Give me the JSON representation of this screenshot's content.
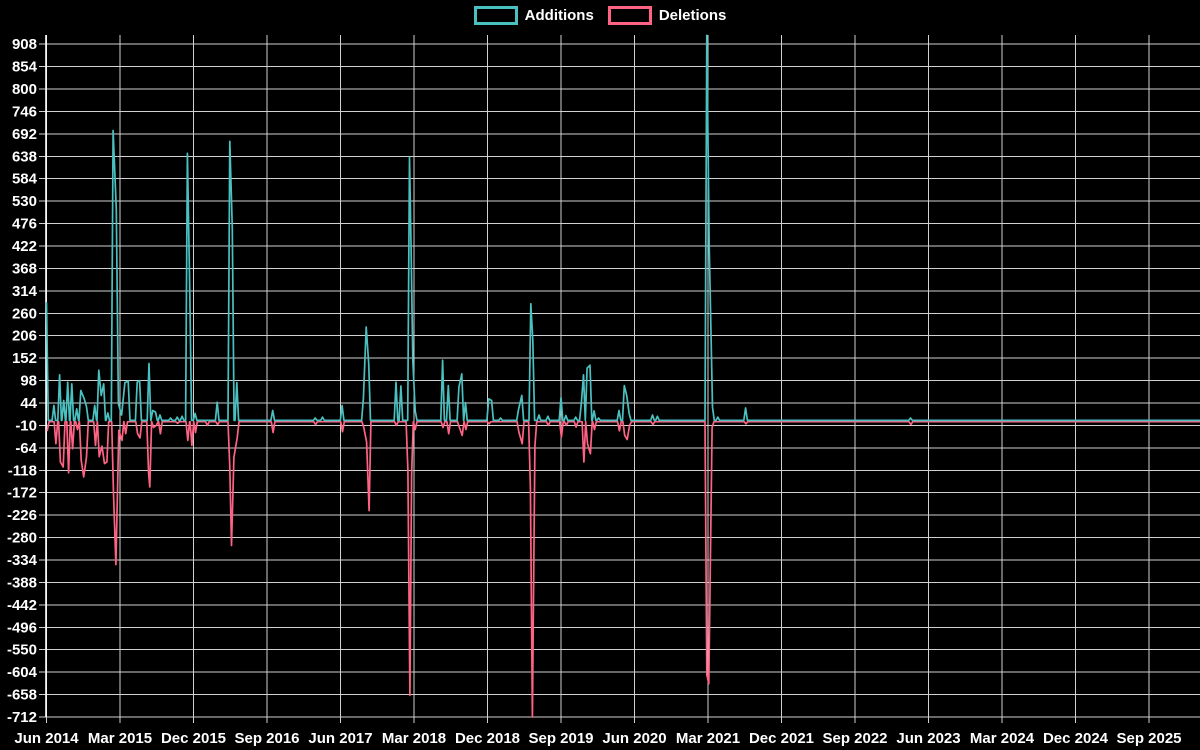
{
  "legend": {
    "additions_label": "Additions",
    "deletions_label": "Deletions"
  },
  "colors": {
    "additions": "#4bc0c0",
    "deletions": "#ff6384",
    "background": "#000000",
    "grid": "#ffffff",
    "text": "#ffffff"
  },
  "chart_data": {
    "type": "line",
    "title": "",
    "legend_position": "top-center",
    "grid": true,
    "x_axis_note": "series x values are months since Jun 2014 (0 = Jun 2014); one gridline every 9 months",
    "x_ticks": [
      "Jun 2014",
      "Mar 2015",
      "Dec 2015",
      "Sep 2016",
      "Jun 2017",
      "Mar 2018",
      "Dec 2018",
      "Sep 2019",
      "Jun 2020",
      "Mar 2021",
      "Dec 2021",
      "Sep 2022",
      "Jun 2023",
      "Mar 2024",
      "Dec 2024",
      "Sep 2025"
    ],
    "y_ticks": [
      908,
      854,
      800,
      746,
      692,
      638,
      584,
      530,
      476,
      422,
      368,
      314,
      260,
      206,
      152,
      98,
      44,
      -10,
      -64,
      -118,
      -172,
      -226,
      -280,
      -334,
      -388,
      -442,
      -496,
      -550,
      -604,
      -658,
      -712
    ],
    "y_range": [
      -712,
      930
    ],
    "x_range_months": [
      0,
      141.3
    ],
    "baseline": {
      "additions": 2,
      "deletions": -1
    },
    "series": [
      {
        "name": "Additions",
        "color": "#4bc0c0",
        "points": [
          [
            0.0,
            285
          ],
          [
            0.9,
            38
          ],
          [
            1.6,
            112
          ],
          [
            2.1,
            50
          ],
          [
            2.6,
            94
          ],
          [
            3.1,
            90
          ],
          [
            3.7,
            30
          ],
          [
            4.2,
            74
          ],
          [
            4.6,
            55
          ],
          [
            4.9,
            35
          ],
          [
            5.9,
            38
          ],
          [
            6.4,
            123
          ],
          [
            6.7,
            62
          ],
          [
            7.0,
            90
          ],
          [
            7.5,
            20
          ],
          [
            8.15,
            700
          ],
          [
            8.55,
            510
          ],
          [
            8.8,
            42
          ],
          [
            9.2,
            15
          ],
          [
            9.6,
            93
          ],
          [
            10.0,
            97
          ],
          [
            11.1,
            94
          ],
          [
            11.4,
            98
          ],
          [
            12.55,
            139
          ],
          [
            13.0,
            26
          ],
          [
            13.35,
            22
          ],
          [
            13.9,
            15
          ],
          [
            15.2,
            8
          ],
          [
            16.0,
            10
          ],
          [
            16.6,
            12
          ],
          [
            17.25,
            645
          ],
          [
            17.55,
            308
          ],
          [
            18.2,
            19
          ],
          [
            20.9,
            46
          ],
          [
            22.45,
            674
          ],
          [
            22.75,
            464
          ],
          [
            23.3,
            93
          ],
          [
            27.7,
            26
          ],
          [
            32.9,
            8
          ],
          [
            33.8,
            10
          ],
          [
            36.2,
            38
          ],
          [
            38.8,
            55
          ],
          [
            39.15,
            227
          ],
          [
            39.45,
            139
          ],
          [
            42.8,
            94
          ],
          [
            43.4,
            85
          ],
          [
            44.45,
            636
          ],
          [
            44.65,
            415
          ],
          [
            44.85,
            147
          ],
          [
            45.15,
            25
          ],
          [
            48.5,
            147
          ],
          [
            49.2,
            86
          ],
          [
            50.5,
            82
          ],
          [
            50.85,
            114
          ],
          [
            51.3,
            45
          ],
          [
            54.15,
            54
          ],
          [
            54.5,
            50
          ],
          [
            55.6,
            8
          ],
          [
            57.8,
            28
          ],
          [
            58.2,
            62
          ],
          [
            59.3,
            283
          ],
          [
            59.55,
            195
          ],
          [
            60.3,
            15
          ],
          [
            61.4,
            12
          ],
          [
            63.0,
            57
          ],
          [
            63.6,
            14
          ],
          [
            64.8,
            10
          ],
          [
            65.5,
            45
          ],
          [
            65.75,
            112
          ],
          [
            66.2,
            128
          ],
          [
            66.55,
            135
          ],
          [
            67.05,
            25
          ],
          [
            67.6,
            8
          ],
          [
            70.1,
            26
          ],
          [
            70.75,
            86
          ],
          [
            71.05,
            62
          ],
          [
            71.35,
            18
          ],
          [
            74.2,
            15
          ],
          [
            74.8,
            12
          ],
          [
            80.85,
            929
          ],
          [
            81.15,
            425
          ],
          [
            81.55,
            34
          ],
          [
            82.2,
            10
          ],
          [
            85.6,
            32
          ],
          [
            105.8,
            8
          ]
        ]
      },
      {
        "name": "Deletions",
        "color": "#ff6384",
        "points": [
          [
            0.1,
            -22
          ],
          [
            1.15,
            -54
          ],
          [
            1.7,
            -98
          ],
          [
            2.05,
            -110
          ],
          [
            2.7,
            -124
          ],
          [
            3.2,
            -66
          ],
          [
            3.8,
            -20
          ],
          [
            4.25,
            -94
          ],
          [
            4.55,
            -134
          ],
          [
            4.9,
            -86
          ],
          [
            6.0,
            -58
          ],
          [
            6.45,
            -85
          ],
          [
            6.8,
            -60
          ],
          [
            7.1,
            -102
          ],
          [
            7.4,
            -98
          ],
          [
            8.2,
            -174
          ],
          [
            8.5,
            -345
          ],
          [
            8.85,
            -22
          ],
          [
            9.25,
            -46
          ],
          [
            9.7,
            -30
          ],
          [
            11.15,
            -30
          ],
          [
            11.45,
            -40
          ],
          [
            12.5,
            -125
          ],
          [
            12.65,
            -158
          ],
          [
            13.1,
            -15
          ],
          [
            13.45,
            -10
          ],
          [
            13.95,
            -30
          ],
          [
            16.05,
            -5
          ],
          [
            17.3,
            -46
          ],
          [
            17.8,
            -58
          ],
          [
            18.25,
            -27
          ],
          [
            19.7,
            -10
          ],
          [
            20.95,
            -8
          ],
          [
            22.45,
            -111
          ],
          [
            22.65,
            -299
          ],
          [
            22.95,
            -87
          ],
          [
            23.35,
            -40
          ],
          [
            27.75,
            -27
          ],
          [
            32.95,
            -8
          ],
          [
            36.25,
            -25
          ],
          [
            38.85,
            -15
          ],
          [
            39.2,
            -50
          ],
          [
            39.5,
            -215
          ],
          [
            42.85,
            -10
          ],
          [
            44.25,
            -118
          ],
          [
            44.5,
            -660
          ],
          [
            44.7,
            -130
          ],
          [
            45.15,
            -20
          ],
          [
            48.55,
            -15
          ],
          [
            49.25,
            -30
          ],
          [
            50.55,
            -14
          ],
          [
            50.9,
            -34
          ],
          [
            51.35,
            -20
          ],
          [
            54.2,
            -6
          ],
          [
            57.85,
            -26
          ],
          [
            58.25,
            -54
          ],
          [
            59.25,
            -160
          ],
          [
            59.5,
            -712
          ],
          [
            59.8,
            -60
          ],
          [
            61.45,
            -10
          ],
          [
            63.05,
            -38
          ],
          [
            63.65,
            -10
          ],
          [
            64.85,
            -14
          ],
          [
            65.8,
            -98
          ],
          [
            66.25,
            -54
          ],
          [
            66.6,
            -78
          ],
          [
            67.1,
            -20
          ],
          [
            70.15,
            -23
          ],
          [
            70.8,
            -34
          ],
          [
            71.1,
            -44
          ],
          [
            71.4,
            -10
          ],
          [
            74.25,
            -8
          ],
          [
            80.85,
            -610
          ],
          [
            81.1,
            -632
          ],
          [
            81.5,
            -15
          ],
          [
            85.65,
            -6
          ],
          [
            105.85,
            -8
          ]
        ]
      }
    ]
  }
}
